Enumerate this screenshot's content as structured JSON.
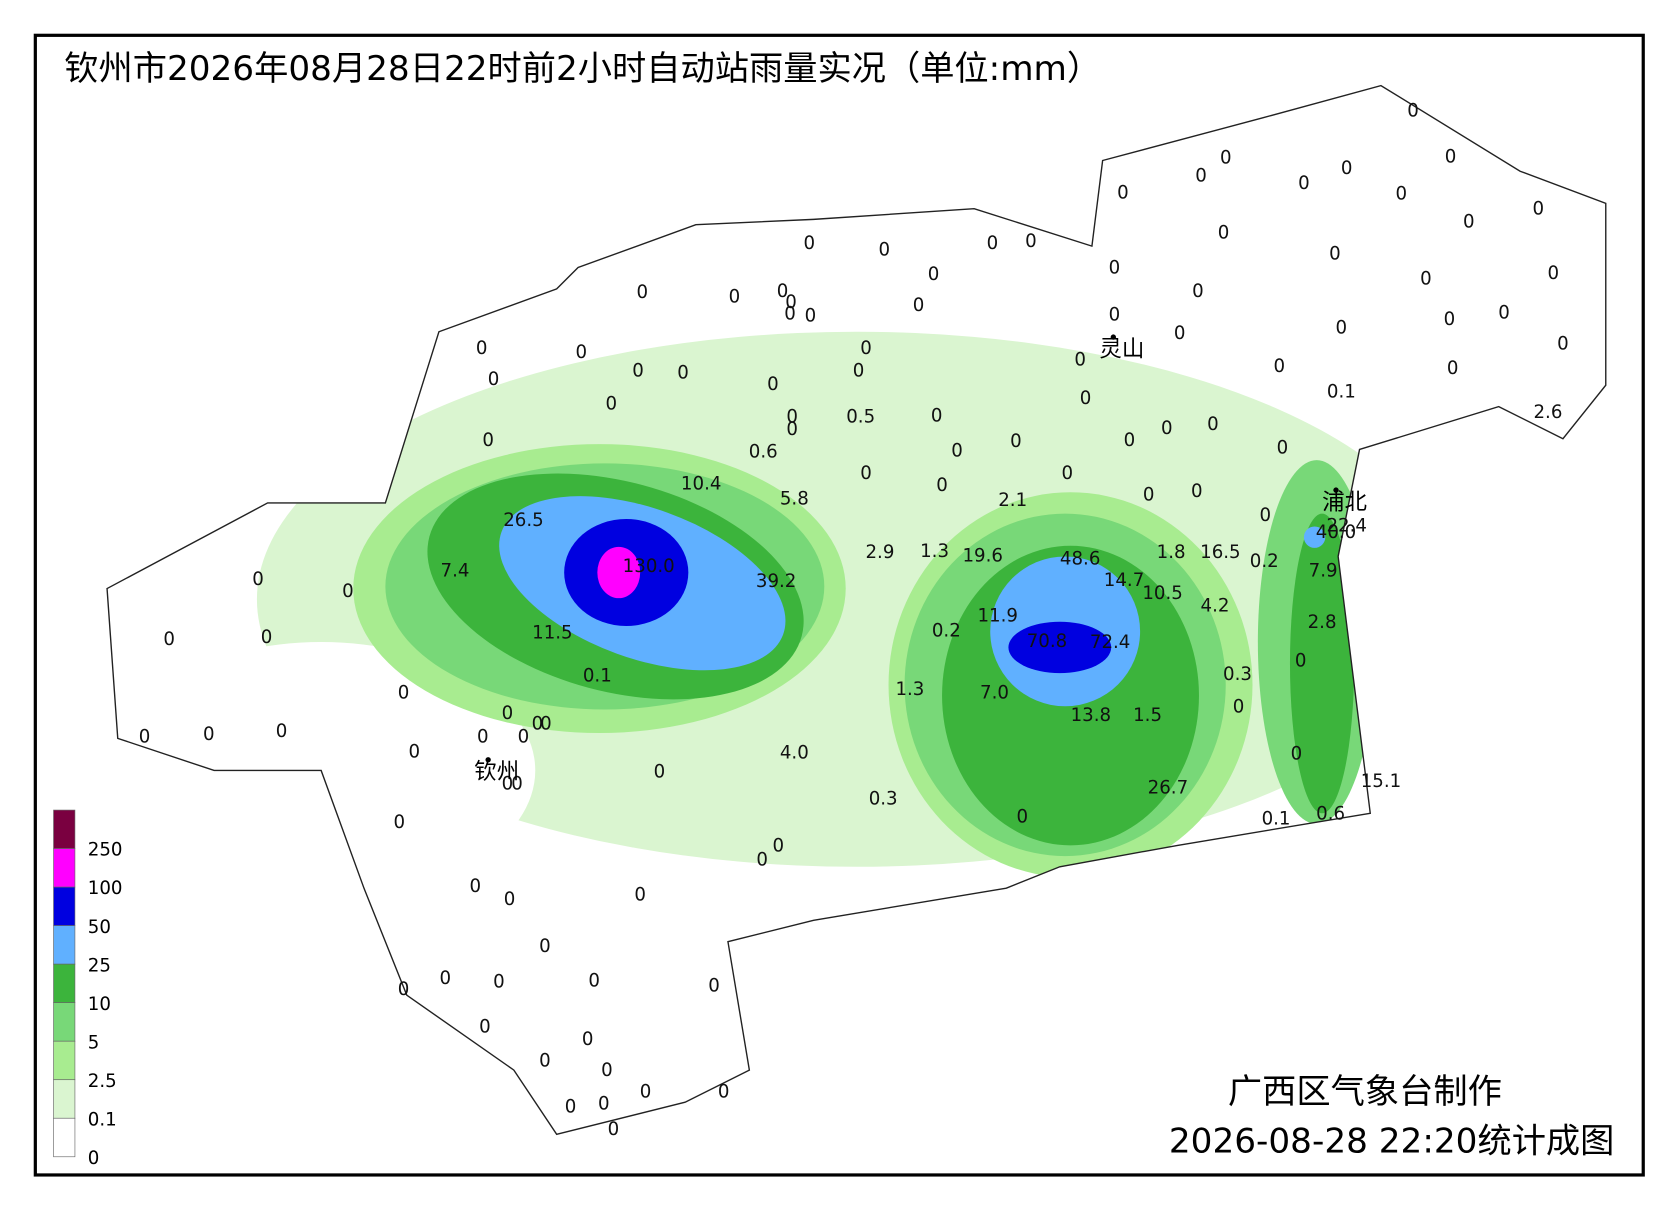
{
  "title": "钦州市2026年08月28日22时前2小时自动站雨量实况（单位:mm）",
  "cities": [
    "灵山",
    "浦北",
    "钦州"
  ],
  "legend": {
    "levels": [
      {
        "label": "250",
        "color": "#7a0040"
      },
      {
        "label": "100",
        "color": "#ff00ff"
      },
      {
        "label": "50",
        "color": "#0000e0"
      },
      {
        "label": "25",
        "color": "#60b0ff"
      },
      {
        "label": "10",
        "color": "#3cb43c"
      },
      {
        "label": "5",
        "color": "#78d878"
      },
      {
        "label": "2.5",
        "color": "#a8ec90"
      },
      {
        "label": "0.1",
        "color": "#daf5d0"
      },
      {
        "label": "0",
        "color": "#ffffff"
      }
    ]
  },
  "stations": [
    "0",
    "0",
    "0",
    "0",
    "0",
    "0",
    "0",
    "0",
    "0",
    "0",
    "0",
    "0",
    "0",
    "0",
    "0",
    "0",
    "0",
    "0.5",
    "0",
    "0.6",
    "0",
    "0",
    "0",
    "0",
    "0",
    "2.1",
    "0",
    "0",
    "0",
    "0",
    "0",
    "0",
    "0",
    "0",
    "0",
    "0",
    "0",
    "0",
    "0",
    "0",
    "0",
    "0",
    "0",
    "0",
    "0",
    "0",
    "0",
    "0",
    "0",
    "0",
    "0",
    "0",
    "0",
    "0",
    "0",
    "0",
    "0",
    "0.1",
    "2.6",
    "0",
    "22.4",
    "40.0",
    "0",
    "0.2",
    "7.9",
    "2.8",
    "0",
    "0.3",
    "0",
    "0",
    "15.1",
    "0.6",
    "0.1",
    "26.7",
    "1.5",
    "13.8",
    "0",
    "7.0",
    "1.3",
    "0.2",
    "11.9",
    "70.8",
    "72.4",
    "19.6",
    "48.6",
    "14.7",
    "10.5",
    "1.8",
    "16.5",
    "4.2",
    "2.9",
    "1.3",
    "5.8",
    "10.4",
    "26.5",
    "7.4",
    "130.0",
    "39.2",
    "11.5",
    "0.1",
    "4.0",
    "0.3",
    "0",
    "0",
    "0",
    "0",
    "0",
    "0",
    "0",
    "0",
    "0",
    "0",
    "0",
    "0",
    "0",
    "0",
    "0",
    "0",
    "0",
    "0",
    "0",
    "0",
    "0",
    "0",
    "0",
    "0",
    "0",
    "0",
    "0",
    "0",
    "0",
    "0",
    "0",
    "0",
    "0",
    "0",
    "0",
    "0",
    "0",
    "0",
    "0",
    "0",
    "0",
    "0",
    "0",
    "0",
    "0"
  ],
  "footer": {
    "maker": "广西区气象台制作",
    "time": "2026-08-28 22:20统计成图"
  }
}
